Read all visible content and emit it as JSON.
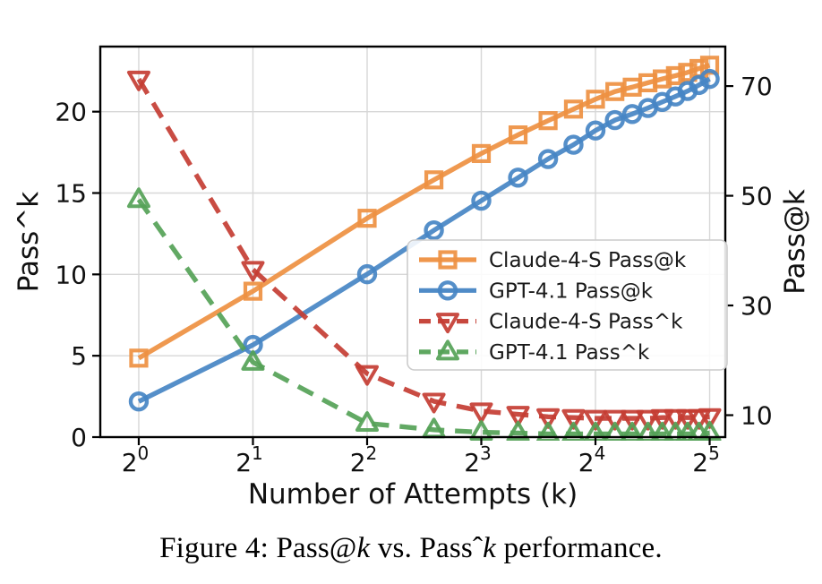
{
  "figure": {
    "caption": {
      "segments": [
        {
          "text": "Figure 4: Pass@"
        },
        {
          "text": "k",
          "italic": true
        },
        {
          "text": " vs. Passˆ"
        },
        {
          "text": "k",
          "italic": true
        },
        {
          "text": " performance."
        }
      ]
    }
  },
  "chart_data": {
    "type": "line",
    "title": "",
    "xlabel": "Number of Attempts (k)",
    "x_scale": "log2",
    "x_range_log2": [
      -0.337,
      5.137
    ],
    "x_tick_values": [
      1,
      2,
      4,
      8,
      16,
      32
    ],
    "x_tick_labels": [
      {
        "base": "2",
        "exp": "0"
      },
      {
        "base": "2",
        "exp": "1"
      },
      {
        "base": "2",
        "exp": "2"
      },
      {
        "base": "2",
        "exp": "3"
      },
      {
        "base": "2",
        "exp": "4"
      },
      {
        "base": "2",
        "exp": "5"
      }
    ],
    "left_axis": {
      "label": "Pass^k",
      "ticks": [
        0,
        5,
        10,
        15,
        20
      ],
      "range": [
        0,
        24
      ]
    },
    "right_axis": {
      "label": "Pass@k",
      "ticks": [
        10,
        30,
        50,
        70
      ],
      "range": [
        6,
        77.2
      ]
    },
    "grid": true,
    "x": [
      1,
      2,
      4,
      6,
      8,
      10,
      12,
      14,
      16,
      18,
      20,
      22,
      24,
      26,
      28,
      30,
      32
    ],
    "series": [
      {
        "name": "Claude-4-S Pass@k",
        "axis": "right",
        "color": "#EE9041",
        "marker": "square",
        "linestyle": "solid",
        "values": [
          20.4,
          32.6,
          45.9,
          52.9,
          57.7,
          61.1,
          63.7,
          65.8,
          67.6,
          69.0,
          69.8,
          70.6,
          71.3,
          71.9,
          72.5,
          73.2,
          73.8
        ]
      },
      {
        "name": "GPT-4.1 Pass@k",
        "axis": "right",
        "color": "#4685C4",
        "marker": "circle",
        "linestyle": "solid",
        "values": [
          12.5,
          22.8,
          35.7,
          43.7,
          49.1,
          53.3,
          56.7,
          59.3,
          61.9,
          63.8,
          64.9,
          66.0,
          67.1,
          68.1,
          69.1,
          70.2,
          71.3
        ]
      },
      {
        "name": "Claude-4-S Pass^k",
        "axis": "left",
        "color": "#C43D33",
        "marker": "triangle-down",
        "linestyle": "dashed",
        "values": [
          22.0,
          10.3,
          3.9,
          2.2,
          1.6,
          1.4,
          1.25,
          1.2,
          1.15,
          1.15,
          1.15,
          1.15,
          1.2,
          1.2,
          1.2,
          1.2,
          1.25
        ]
      },
      {
        "name": "GPT-4.1 Pass^k",
        "axis": "left",
        "color": "#55A257",
        "marker": "triangle-up",
        "linestyle": "dashed",
        "values": [
          14.6,
          4.6,
          0.85,
          0.45,
          0.3,
          0.25,
          0.2,
          0.2,
          0.2,
          0.2,
          0.2,
          0.2,
          0.2,
          0.2,
          0.2,
          0.2,
          0.25
        ]
      }
    ],
    "legend": {
      "position": "center-right",
      "entries": [
        "Claude-4-S Pass@k",
        "GPT-4.1 Pass@k",
        "Claude-4-S Pass^k",
        "GPT-4.1 Pass^k"
      ]
    }
  }
}
